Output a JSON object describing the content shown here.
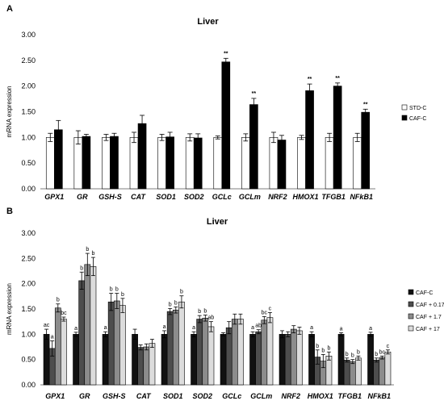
{
  "chart_data": [
    {
      "panel": "A",
      "type": "bar",
      "title": "Liver",
      "xlabel": "",
      "ylabel": "mRNA expression",
      "ylim": [
        0,
        3
      ],
      "yticks": [
        "0.00",
        "0.50",
        "1.00",
        "1.50",
        "2.00",
        "2.50",
        "3.00"
      ],
      "grid": false,
      "legend_position": "right",
      "categories": [
        "GPX1",
        "GR",
        "GSH-S",
        "CAT",
        "SOD1",
        "SOD2",
        "GCLc",
        "GCLm",
        "NRF2",
        "HMOX1",
        "TFGB1",
        "NFkB1"
      ],
      "series": [
        {
          "name": "STD-C",
          "color": "#ffffff",
          "values": [
            1.0,
            1.0,
            1.0,
            1.0,
            1.0,
            1.0,
            1.0,
            1.0,
            1.0,
            1.0,
            1.0,
            1.0
          ],
          "errors": [
            0.08,
            0.13,
            0.06,
            0.1,
            0.06,
            0.07,
            0.03,
            0.07,
            0.1,
            0.04,
            0.08,
            0.08
          ]
        },
        {
          "name": "CAF-C",
          "color": "#000000",
          "values": [
            1.15,
            1.02,
            1.02,
            1.27,
            1.01,
            0.99,
            2.47,
            1.64,
            0.95,
            1.91,
            2.0,
            1.49
          ],
          "errors": [
            0.18,
            0.04,
            0.06,
            0.16,
            0.09,
            0.08,
            0.07,
            0.12,
            0.09,
            0.13,
            0.06,
            0.06
          ]
        }
      ],
      "annotations": [
        "",
        "",
        "",
        "",
        "",
        "",
        "**",
        "**",
        "",
        "**",
        "**",
        "**"
      ]
    },
    {
      "panel": "B",
      "type": "bar",
      "title": "Liver",
      "xlabel": "",
      "ylabel": "mRNA expression",
      "ylim": [
        0,
        3
      ],
      "yticks": [
        "0.00",
        "0.50",
        "1.00",
        "1.50",
        "2.00",
        "2.50",
        "3.00"
      ],
      "grid": false,
      "legend_position": "right",
      "categories": [
        "GPX1",
        "GR",
        "GSH-S",
        "CAT",
        "SOD1",
        "SOD2",
        "GCLc",
        "GCLm",
        "NRF2",
        "HMOX1",
        "TFGB1",
        "NFkB1"
      ],
      "series": [
        {
          "name": "CAF-C",
          "color": "#111111",
          "values": [
            1.0,
            1.0,
            1.0,
            1.0,
            1.0,
            1.0,
            1.0,
            1.0,
            1.0,
            1.0,
            1.0,
            1.0
          ],
          "errors": [
            0.1,
            0.04,
            0.05,
            0.1,
            0.07,
            0.05,
            0.03,
            0.05,
            0.07,
            0.05,
            0.03,
            0.04
          ],
          "letters": [
            "ac",
            "a",
            "a",
            "",
            "a",
            "a",
            "",
            "a",
            "",
            "a",
            "a",
            "a"
          ]
        },
        {
          "name": "CAF + 0.17",
          "color": "#4d4d4d",
          "values": [
            0.72,
            2.06,
            1.64,
            0.74,
            1.45,
            1.3,
            1.13,
            1.05,
            1.0,
            0.55,
            0.49,
            0.49
          ],
          "errors": [
            0.15,
            0.17,
            0.17,
            0.05,
            0.06,
            0.07,
            0.12,
            0.04,
            0.05,
            0.14,
            0.04,
            0.04
          ],
          "letters": [
            "a",
            "b",
            "b",
            "",
            "b",
            "b",
            "",
            "ab",
            "",
            "b",
            "b",
            "b"
          ]
        },
        {
          "name": "CAF + 1.7",
          "color": "#8c8c8c",
          "values": [
            1.52,
            2.38,
            1.66,
            0.75,
            1.48,
            1.32,
            1.3,
            1.28,
            1.1,
            0.47,
            0.46,
            0.54
          ],
          "errors": [
            0.08,
            0.22,
            0.15,
            0.06,
            0.06,
            0.06,
            0.1,
            0.07,
            0.07,
            0.13,
            0.04,
            0.03
          ],
          "letters": [
            "b",
            "b",
            "b",
            "",
            "b",
            "b",
            "",
            "bc",
            "",
            "b",
            "b",
            "bc"
          ]
        },
        {
          "name": "CAF + 17",
          "color": "#dcdcdc",
          "values": [
            1.3,
            2.34,
            1.57,
            0.82,
            1.64,
            1.15,
            1.3,
            1.33,
            1.07,
            0.57,
            0.53,
            0.65
          ],
          "errors": [
            0.04,
            0.18,
            0.14,
            0.08,
            0.12,
            0.1,
            0.1,
            0.1,
            0.07,
            0.08,
            0.04,
            0.04
          ],
          "letters": [
            "bc",
            "b",
            "b",
            "",
            "b",
            "ab",
            "",
            "c",
            "",
            "b",
            "b",
            "c"
          ]
        }
      ]
    }
  ]
}
